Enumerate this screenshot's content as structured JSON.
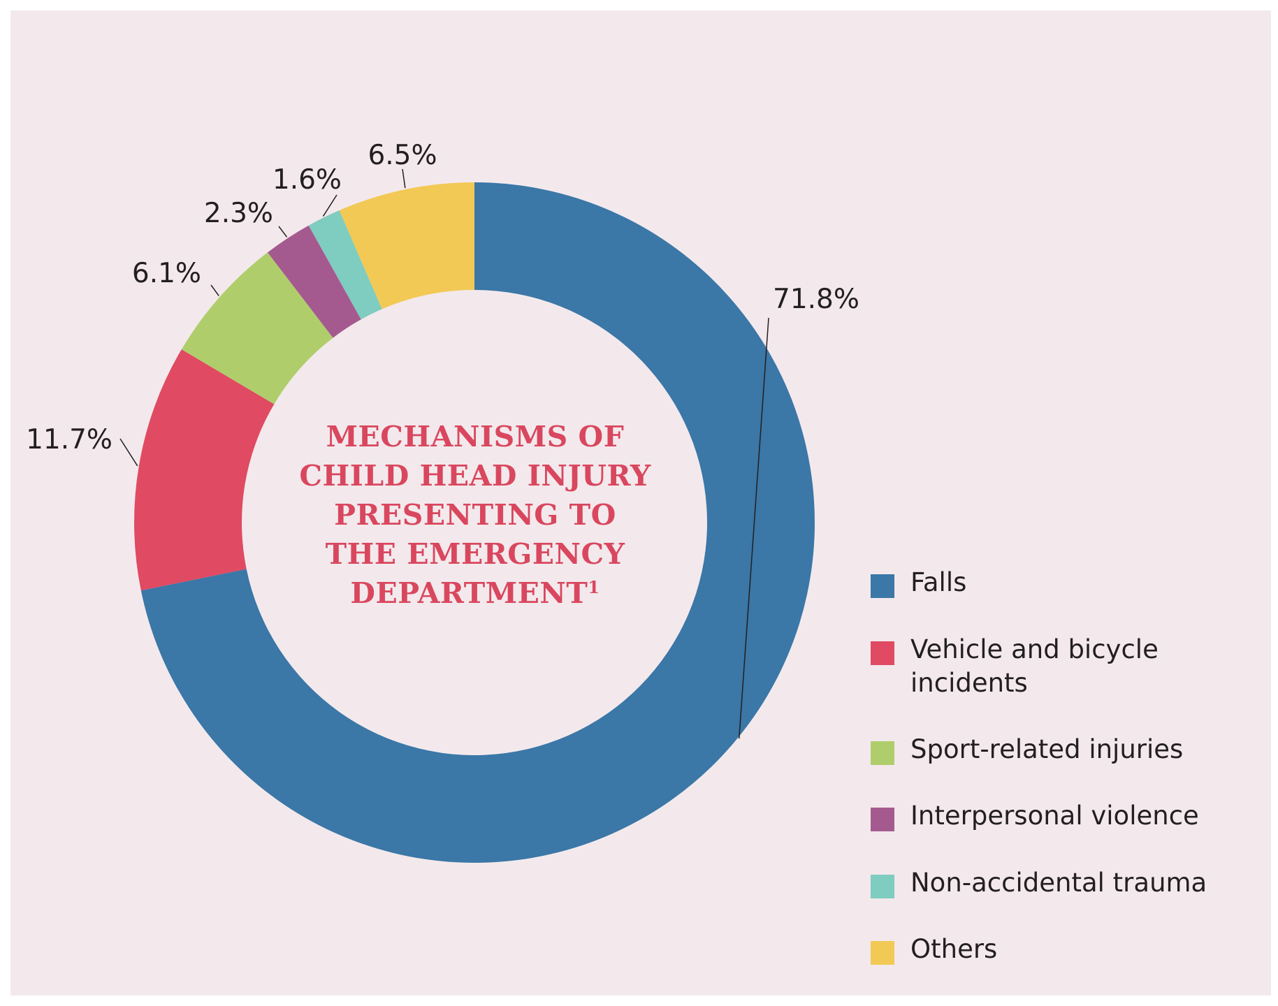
{
  "chart_data": {
    "type": "pie",
    "subtype": "donut",
    "title_lines": [
      "MECHANISMS OF",
      "CHILD HEAD INJURY",
      "PRESENTING TO",
      "THE EMERGENCY",
      "DEPARTMENT"
    ],
    "title_superscript": "1",
    "legend_position": "right",
    "slices": [
      {
        "name": "Falls",
        "value": 71.8,
        "label": "71.8%",
        "color": "#3b77a7"
      },
      {
        "name": "Vehicle and bicycle incidents",
        "value": 11.7,
        "label": "11.7%",
        "color": "#e04a62"
      },
      {
        "name": "Sport-related injuries",
        "value": 6.1,
        "label": "6.1%",
        "color": "#afce6b"
      },
      {
        "name": "Interpersonal violence",
        "value": 2.3,
        "label": "2.3%",
        "color": "#a55a8f"
      },
      {
        "name": "Non-accidental trauma",
        "value": 1.6,
        "label": "1.6%",
        "color": "#7fccc0"
      },
      {
        "name": "Others",
        "value": 6.5,
        "label": "6.5%",
        "color": "#f2c955"
      }
    ],
    "legend": [
      {
        "lines": [
          "Falls"
        ],
        "color": "#3b77a7"
      },
      {
        "lines": [
          "Vehicle and bicycle",
          "incidents"
        ],
        "color": "#e04a62"
      },
      {
        "lines": [
          "Sport-related injuries"
        ],
        "color": "#afce6b"
      },
      {
        "lines": [
          "Interpersonal violence"
        ],
        "color": "#a55a8f"
      },
      {
        "lines": [
          "Non-accidental trauma"
        ],
        "color": "#7fccc0"
      },
      {
        "lines": [
          "Others"
        ],
        "color": "#f2c955"
      }
    ]
  }
}
